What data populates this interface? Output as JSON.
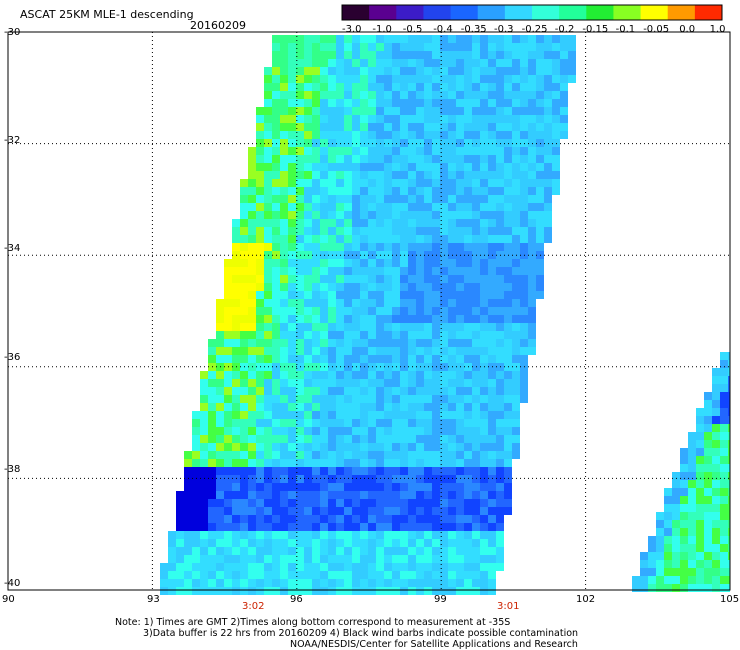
{
  "header": {
    "title": "ASCAT 25KM MLE-1 descending",
    "date": "20160209"
  },
  "colorbar": {
    "tick_labels": [
      "-3.0",
      "-1.0",
      "-0.5",
      "-0.4",
      "-0.35",
      "-0.3",
      "-0.25",
      "-0.2",
      "-0.15",
      "-0.1",
      "-0.05",
      "0.0",
      "1.0"
    ],
    "colors": [
      "#2a0030",
      "#5a0090",
      "#3c1cc8",
      "#2244ee",
      "#1a66ff",
      "#2aa0ff",
      "#33d7ff",
      "#33ffd9",
      "#22ff9a",
      "#22ee33",
      "#88ff22",
      "#ffff00",
      "#ff9a00",
      "#ff2a00"
    ]
  },
  "map": {
    "lat_labels": [
      "-30",
      "-32",
      "-34",
      "-36",
      "-38",
      "-40"
    ],
    "lon_labels": [
      "90",
      "93",
      "96",
      "99",
      "102",
      "105"
    ],
    "time_labels": [
      "3:02",
      "3:01"
    ],
    "time_label_color": "#cc2200",
    "swath_palette": [
      "#0000dd",
      "#1144ff",
      "#2266ff",
      "#2a88ff",
      "#33aaff",
      "#33ccff",
      "#33ddff",
      "#33ffee",
      "#33ffbb",
      "#33ff88",
      "#44ff44",
      "#99ff22",
      "#eeff00",
      "#ffff00",
      "#ff9900"
    ]
  },
  "footer": {
    "note_line1": "Note: 1) Times are GMT 2)Times along bottom correspond to measurement at -35S",
    "note_line2": "3)Data buffer is 22 hrs from 20160209 4) Black wind barbs indicate possible contamination",
    "credit": "NOAA/NESDIS/Center for Satellite Applications and Research"
  }
}
